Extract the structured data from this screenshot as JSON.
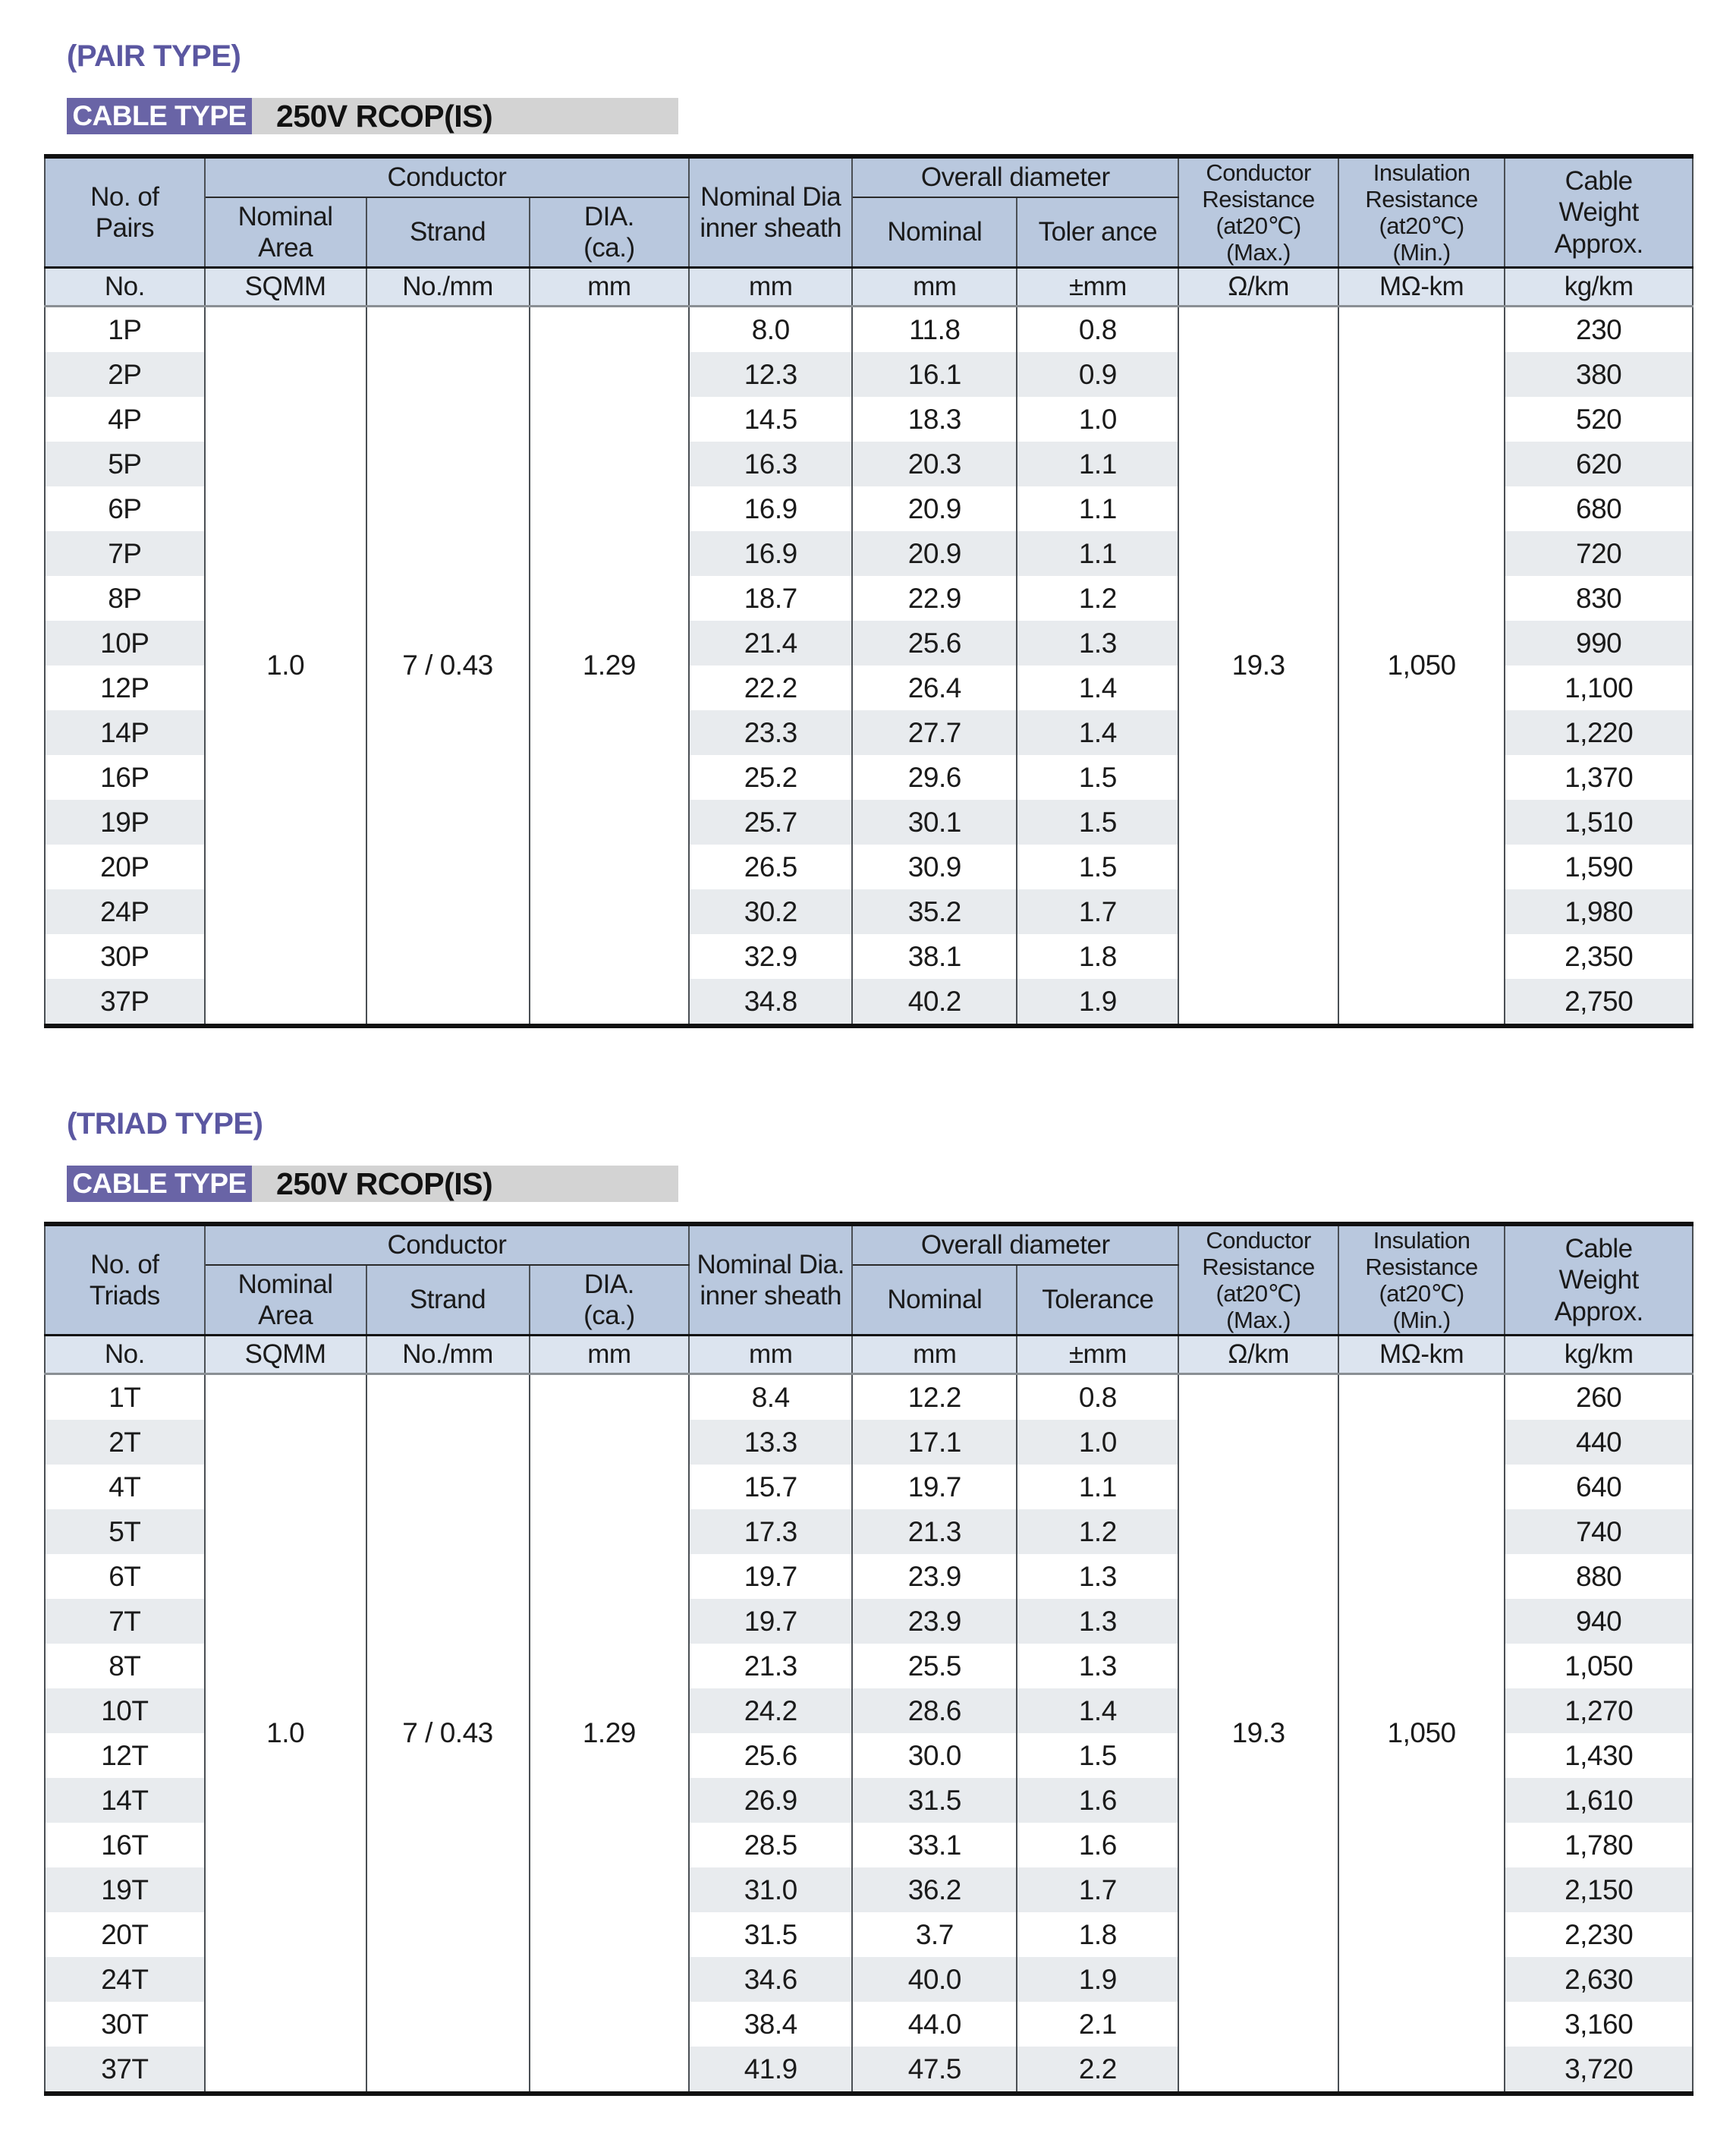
{
  "sections": [
    {
      "title": "(PAIR TYPE)",
      "cable_type_label": "CABLE TYPE",
      "cable_type_value": "250V RCOP(IS)",
      "table": {
        "columns": {
          "count": "No. of\nPairs",
          "conductor_group": "Conductor",
          "nominal_area": "Nominal\nArea",
          "strand": "Strand",
          "dia": "DIA.\n(ca.)",
          "inner_sheath": "Nominal Dia\ninner sheath",
          "overall_group": "Overall diameter",
          "overall_nominal": "Nominal",
          "overall_tolerance": "Toler ance",
          "conductor_resistance": "Conductor\nResistance\n(at20℃)\n(Max.)",
          "insulation_resistance": "Insulation\nResistance\n(at20℃)\n(Min.)",
          "cable_weight": "Cable\nWeight\nApprox."
        },
        "units": [
          "No.",
          "SQMM",
          "No./mm",
          "mm",
          "mm",
          "mm",
          "±mm",
          "Ω/km",
          "MΩ-km",
          "kg/km"
        ],
        "merged": {
          "nominal_area": "1.0",
          "strand": "7 / 0.43",
          "dia": "1.29",
          "conductor_resistance": "19.3",
          "insulation_resistance": "1,050"
        },
        "rows": [
          [
            "1P",
            "8.0",
            "11.8",
            "0.8",
            "230"
          ],
          [
            "2P",
            "12.3",
            "16.1",
            "0.9",
            "380"
          ],
          [
            "4P",
            "14.5",
            "18.3",
            "1.0",
            "520"
          ],
          [
            "5P",
            "16.3",
            "20.3",
            "1.1",
            "620"
          ],
          [
            "6P",
            "16.9",
            "20.9",
            "1.1",
            "680"
          ],
          [
            "7P",
            "16.9",
            "20.9",
            "1.1",
            "720"
          ],
          [
            "8P",
            "18.7",
            "22.9",
            "1.2",
            "830"
          ],
          [
            "10P",
            "21.4",
            "25.6",
            "1.3",
            "990"
          ],
          [
            "12P",
            "22.2",
            "26.4",
            "1.4",
            "1,100"
          ],
          [
            "14P",
            "23.3",
            "27.7",
            "1.4",
            "1,220"
          ],
          [
            "16P",
            "25.2",
            "29.6",
            "1.5",
            "1,370"
          ],
          [
            "19P",
            "25.7",
            "30.1",
            "1.5",
            "1,510"
          ],
          [
            "20P",
            "26.5",
            "30.9",
            "1.5",
            "1,590"
          ],
          [
            "24P",
            "30.2",
            "35.2",
            "1.7",
            "1,980"
          ],
          [
            "30P",
            "32.9",
            "38.1",
            "1.8",
            "2,350"
          ],
          [
            "37P",
            "34.8",
            "40.2",
            "1.9",
            "2,750"
          ]
        ]
      }
    },
    {
      "title": "(TRIAD TYPE)",
      "cable_type_label": "CABLE TYPE",
      "cable_type_value": "250V RCOP(IS)",
      "table": {
        "columns": {
          "count": "No. of\nTriads",
          "conductor_group": "Conductor",
          "nominal_area": "Nominal\nArea",
          "strand": "Strand",
          "dia": "DIA.\n(ca.)",
          "inner_sheath": "Nominal Dia.\ninner sheath",
          "overall_group": "Overall diameter",
          "overall_nominal": "Nominal",
          "overall_tolerance": "Tolerance",
          "conductor_resistance": "Conductor\nResistance\n(at20℃)\n(Max.)",
          "insulation_resistance": "Insulation\nResistance\n(at20℃)\n(Min.)",
          "cable_weight": "Cable\nWeight\nApprox."
        },
        "units": [
          "No.",
          "SQMM",
          "No./mm",
          "mm",
          "mm",
          "mm",
          "±mm",
          "Ω/km",
          "MΩ-km",
          "kg/km"
        ],
        "merged": {
          "nominal_area": "1.0",
          "strand": "7 / 0.43",
          "dia": "1.29",
          "conductor_resistance": "19.3",
          "insulation_resistance": "1,050"
        },
        "rows": [
          [
            "1T",
            "8.4",
            "12.2",
            "0.8",
            "260"
          ],
          [
            "2T",
            "13.3",
            "17.1",
            "1.0",
            "440"
          ],
          [
            "4T",
            "15.7",
            "19.7",
            "1.1",
            "640"
          ],
          [
            "5T",
            "17.3",
            "21.3",
            "1.2",
            "740"
          ],
          [
            "6T",
            "19.7",
            "23.9",
            "1.3",
            "880"
          ],
          [
            "7T",
            "19.7",
            "23.9",
            "1.3",
            "940"
          ],
          [
            "8T",
            "21.3",
            "25.5",
            "1.3",
            "1,050"
          ],
          [
            "10T",
            "24.2",
            "28.6",
            "1.4",
            "1,270"
          ],
          [
            "12T",
            "25.6",
            "30.0",
            "1.5",
            "1,430"
          ],
          [
            "14T",
            "26.9",
            "31.5",
            "1.6",
            "1,610"
          ],
          [
            "16T",
            "28.5",
            "33.1",
            "1.6",
            "1,780"
          ],
          [
            "19T",
            "31.0",
            "36.2",
            "1.7",
            "2,150"
          ],
          [
            "20T",
            "31.5",
            "3.7",
            "1.8",
            "2,230"
          ],
          [
            "24T",
            "34.6",
            "40.0",
            "1.9",
            "2,630"
          ],
          [
            "30T",
            "38.4",
            "44.0",
            "2.1",
            "3,160"
          ],
          [
            "37T",
            "41.9",
            "47.5",
            "2.2",
            "3,720"
          ]
        ]
      }
    }
  ]
}
